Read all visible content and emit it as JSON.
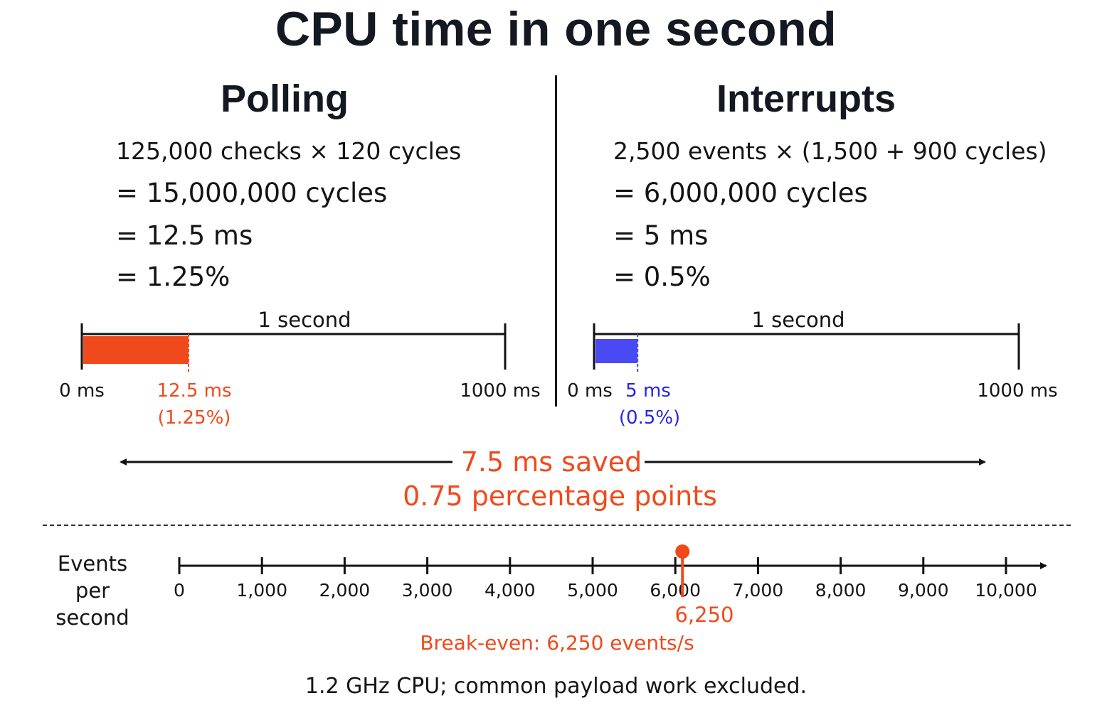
{
  "title": "CPU time in one second",
  "polling": {
    "heading": "Polling",
    "formula": [
      "125,000 checks × 120 cycles",
      "= 15,000,000 cycles",
      "= 12.5 ms",
      "= 1.25%"
    ],
    "timeline": {
      "label": "1 second",
      "start_label": "0 ms",
      "end_label": "1000 ms",
      "value_label": "12.5 ms",
      "percent_label": "(1.25%)",
      "value_ms": 12.5,
      "total_ms": 1000,
      "color": "#f04a1c"
    }
  },
  "interrupts": {
    "heading": "Interrupts",
    "formula": [
      "2,500 events × (1,500 + 900 cycles)",
      "= 6,000,000 cycles",
      "= 5 ms",
      "= 0.5%"
    ],
    "timeline": {
      "label": "1 second",
      "start_label": "0 ms",
      "end_label": "1000 ms",
      "value_label": "5 ms",
      "percent_label": "(0.5%)",
      "value_ms": 5,
      "total_ms": 1000,
      "color": "#4a4af5"
    }
  },
  "savings": {
    "line1": "7.5 ms saved",
    "line2": "0.75 percentage points",
    "color": "#f04a1c"
  },
  "events_axis": {
    "title_line1": "Events",
    "title_line2": "per second",
    "ticks": [
      "0",
      "1,000",
      "2,000",
      "3,000",
      "4,000",
      "5,000",
      "6,000",
      "7,000",
      "8,000",
      "9,000",
      "10,000"
    ],
    "tick_values": [
      0,
      1000,
      2000,
      3000,
      4000,
      5000,
      6000,
      7000,
      8000,
      9000,
      10000
    ],
    "marker_value": 6250,
    "marker_label": "6,250",
    "break_even_label": "Break-even: 6,250 events/s",
    "color": "#f04a1c"
  },
  "footnote": "1.2 GHz CPU; common payload work excluded."
}
